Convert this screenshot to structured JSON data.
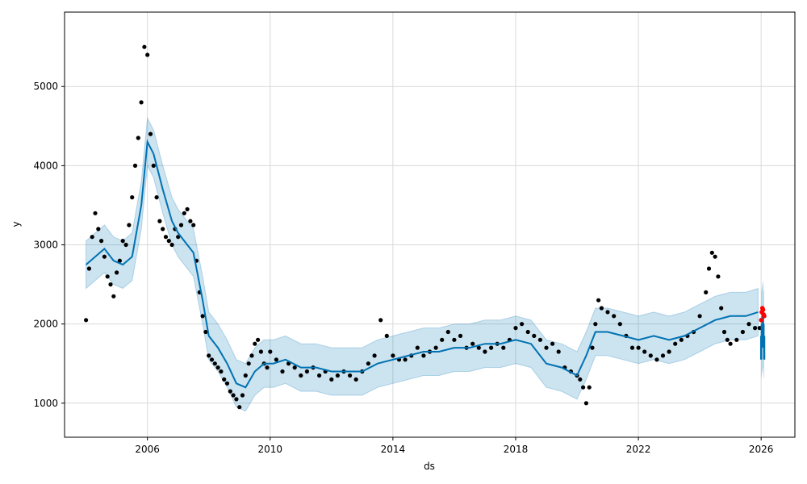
{
  "chart_data": {
    "type": "line",
    "title": "",
    "xlabel": "ds",
    "ylabel": "y",
    "xlim": [
      2003.3,
      2027.1
    ],
    "ylim": [
      570,
      5940
    ],
    "grid": true,
    "x_ticks": [
      {
        "value": 2006,
        "label": "2006"
      },
      {
        "value": 2010,
        "label": "2010"
      },
      {
        "value": 2014,
        "label": "2014"
      },
      {
        "value": 2018,
        "label": "2018"
      },
      {
        "value": 2022,
        "label": "2022"
      },
      {
        "value": 2026,
        "label": "2026"
      }
    ],
    "y_ticks": [
      {
        "value": 1000,
        "label": "1000"
      },
      {
        "value": 2000,
        "label": "2000"
      },
      {
        "value": 3000,
        "label": "3000"
      },
      {
        "value": 4000,
        "label": "4000"
      },
      {
        "value": 5000,
        "label": "5000"
      }
    ],
    "colors": {
      "observed": "#000000",
      "forecast": "#0072B2",
      "interval": "#0072B2",
      "highlight": "#FF0000",
      "grid": "#d9d9d9"
    },
    "series": [
      {
        "kind": "observed-points",
        "x": [
          2004.0,
          2004.1,
          2004.2,
          2004.3,
          2004.4,
          2004.5,
          2004.6,
          2004.7,
          2004.8,
          2004.9,
          2005.0,
          2005.1,
          2005.2,
          2005.3,
          2005.4,
          2005.5,
          2005.6,
          2005.7,
          2005.8,
          2005.9,
          2006.0,
          2006.1,
          2006.2,
          2006.3,
          2006.4,
          2006.5,
          2006.6,
          2006.7,
          2006.8,
          2006.9,
          2007.0,
          2007.1,
          2007.2,
          2007.3,
          2007.4,
          2007.5,
          2007.6,
          2007.7,
          2007.8,
          2007.9,
          2008.0,
          2008.1,
          2008.2,
          2008.3,
          2008.4,
          2008.5,
          2008.6,
          2008.7,
          2008.8,
          2008.9,
          2009.0,
          2009.1,
          2009.2,
          2009.3,
          2009.4,
          2009.5,
          2009.6,
          2009.7,
          2009.8,
          2009.9,
          2010.0,
          2010.2,
          2010.4,
          2010.6,
          2010.8,
          2011.0,
          2011.2,
          2011.4,
          2011.6,
          2011.8,
          2012.0,
          2012.2,
          2012.4,
          2012.6,
          2012.8,
          2013.0,
          2013.2,
          2013.4,
          2013.6,
          2013.8,
          2014.0,
          2014.2,
          2014.4,
          2014.6,
          2014.8,
          2015.0,
          2015.2,
          2015.4,
          2015.6,
          2015.8,
          2016.0,
          2016.2,
          2016.4,
          2016.6,
          2016.8,
          2017.0,
          2017.2,
          2017.4,
          2017.6,
          2017.8,
          2018.0,
          2018.2,
          2018.4,
          2018.6,
          2018.8,
          2019.0,
          2019.2,
          2019.4,
          2019.6,
          2019.8,
          2020.0,
          2020.1,
          2020.2,
          2020.3,
          2020.4,
          2020.5,
          2020.6,
          2020.7,
          2020.8,
          2021.0,
          2021.2,
          2021.4,
          2021.6,
          2021.8,
          2022.0,
          2022.2,
          2022.4,
          2022.6,
          2022.8,
          2023.0,
          2023.2,
          2023.4,
          2023.6,
          2023.8,
          2024.0,
          2024.2,
          2024.3,
          2024.4,
          2024.5,
          2024.6,
          2024.7,
          2024.8,
          2024.9,
          2025.0,
          2025.2,
          2025.4,
          2025.6,
          2025.8,
          2025.95
        ],
        "y": [
          2050,
          2700,
          3100,
          3400,
          3200,
          3050,
          2850,
          2600,
          2500,
          2350,
          2650,
          2800,
          3050,
          3000,
          3250,
          3600,
          4000,
          4350,
          4800,
          5500,
          5400,
          4400,
          4000,
          3600,
          3300,
          3200,
          3100,
          3050,
          3000,
          3200,
          3100,
          3250,
          3400,
          3450,
          3300,
          3250,
          2800,
          2400,
          2100,
          1900,
          1600,
          1550,
          1500,
          1450,
          1400,
          1300,
          1250,
          1150,
          1100,
          1050,
          950,
          1100,
          1350,
          1500,
          1600,
          1750,
          1800,
          1650,
          1500,
          1450,
          1650,
          1550,
          1400,
          1500,
          1450,
          1350,
          1400,
          1450,
          1350,
          1400,
          1300,
          1350,
          1400,
          1350,
          1300,
          1400,
          1500,
          1600,
          2050,
          1850,
          1600,
          1550,
          1550,
          1600,
          1700,
          1600,
          1650,
          1700,
          1800,
          1900,
          1800,
          1850,
          1700,
          1750,
          1700,
          1650,
          1700,
          1750,
          1700,
          1800,
          1950,
          2000,
          1900,
          1850,
          1800,
          1700,
          1750,
          1650,
          1450,
          1400,
          1350,
          1300,
          1200,
          1000,
          1200,
          1700,
          2000,
          2300,
          2200,
          2150,
          2100,
          2000,
          1850,
          1700,
          1700,
          1650,
          1600,
          1550,
          1600,
          1650,
          1750,
          1800,
          1850,
          1900,
          2100,
          2400,
          2700,
          2900,
          2850,
          2600,
          2200,
          1900,
          1800,
          1750,
          1800,
          1900,
          2000,
          1950,
          1950
        ]
      },
      {
        "kind": "forecast-line",
        "x": [
          2004.0,
          2004.3,
          2004.6,
          2004.9,
          2005.2,
          2005.5,
          2005.8,
          2006.0,
          2006.2,
          2006.5,
          2006.8,
          2007.0,
          2007.2,
          2007.5,
          2007.8,
          2008.0,
          2008.3,
          2008.6,
          2008.9,
          2009.2,
          2009.5,
          2009.8,
          2010.1,
          2010.5,
          2011.0,
          2011.5,
          2012.0,
          2012.5,
          2013.0,
          2013.5,
          2014.0,
          2014.5,
          2015.0,
          2015.5,
          2016.0,
          2016.5,
          2017.0,
          2017.5,
          2018.0,
          2018.5,
          2019.0,
          2019.5,
          2020.0,
          2020.3,
          2020.6,
          2021.0,
          2021.5,
          2022.0,
          2022.5,
          2023.0,
          2023.5,
          2024.0,
          2024.5,
          2025.0,
          2025.5,
          2025.9
        ],
        "y": [
          2750,
          2850,
          2950,
          2800,
          2750,
          2850,
          3500,
          4300,
          4150,
          3700,
          3300,
          3150,
          3050,
          2900,
          2300,
          1850,
          1700,
          1500,
          1250,
          1200,
          1400,
          1500,
          1500,
          1550,
          1450,
          1450,
          1400,
          1400,
          1400,
          1500,
          1550,
          1600,
          1650,
          1650,
          1700,
          1700,
          1750,
          1750,
          1800,
          1750,
          1500,
          1450,
          1350,
          1600,
          1900,
          1900,
          1850,
          1800,
          1850,
          1800,
          1850,
          1950,
          2050,
          2100,
          2100,
          2150
        ]
      },
      {
        "kind": "interval-band",
        "x": [
          2004.0,
          2004.3,
          2004.6,
          2004.9,
          2005.2,
          2005.5,
          2005.8,
          2006.0,
          2006.2,
          2006.5,
          2006.8,
          2007.0,
          2007.2,
          2007.5,
          2007.8,
          2008.0,
          2008.3,
          2008.6,
          2008.9,
          2009.2,
          2009.5,
          2009.8,
          2010.1,
          2010.5,
          2011.0,
          2011.5,
          2012.0,
          2012.5,
          2013.0,
          2013.5,
          2014.0,
          2014.5,
          2015.0,
          2015.5,
          2016.0,
          2016.5,
          2017.0,
          2017.5,
          2018.0,
          2018.5,
          2019.0,
          2019.5,
          2020.0,
          2020.3,
          2020.6,
          2021.0,
          2021.5,
          2022.0,
          2022.5,
          2023.0,
          2023.5,
          2024.0,
          2024.5,
          2025.0,
          2025.5,
          2025.9
        ],
        "lower": [
          2450,
          2550,
          2650,
          2500,
          2450,
          2550,
          3200,
          4000,
          3850,
          3400,
          3000,
          2850,
          2750,
          2600,
          2000,
          1550,
          1400,
          1200,
          950,
          900,
          1100,
          1200,
          1200,
          1250,
          1150,
          1150,
          1100,
          1100,
          1100,
          1200,
          1250,
          1300,
          1350,
          1350,
          1400,
          1400,
          1450,
          1450,
          1500,
          1450,
          1200,
          1150,
          1050,
          1300,
          1600,
          1600,
          1550,
          1500,
          1550,
          1500,
          1550,
          1650,
          1750,
          1800,
          1800,
          1850
        ],
        "upper": [
          3050,
          3150,
          3250,
          3100,
          3050,
          3150,
          3800,
          4600,
          4450,
          4000,
          3600,
          3450,
          3350,
          3200,
          2600,
          2150,
          2000,
          1800,
          1550,
          1500,
          1700,
          1800,
          1800,
          1850,
          1750,
          1750,
          1700,
          1700,
          1700,
          1800,
          1850,
          1900,
          1950,
          1950,
          2000,
          2000,
          2050,
          2050,
          2100,
          2050,
          1800,
          1750,
          1650,
          1900,
          2200,
          2200,
          2150,
          2100,
          2150,
          2100,
          2150,
          2250,
          2350,
          2400,
          2400,
          2450
        ]
      },
      {
        "kind": "future-forecast",
        "x": [
          2026.0,
          2026.02,
          2026.04,
          2026.06,
          2026.08,
          2026.1
        ],
        "y": [
          1700,
          1850,
          1950,
          2050,
          1850,
          1700
        ],
        "lower": [
          1300,
          1350,
          1400,
          1450,
          1350,
          1300
        ],
        "upper": [
          2400,
          2450,
          2500,
          2550,
          2450,
          2400
        ]
      },
      {
        "kind": "highlight-points",
        "x": [
          2026.0,
          2026.02,
          2026.04,
          2026.06,
          2026.08,
          2026.1
        ],
        "y": [
          2050,
          2150,
          2200,
          2180,
          2120,
          2100
        ]
      }
    ]
  }
}
